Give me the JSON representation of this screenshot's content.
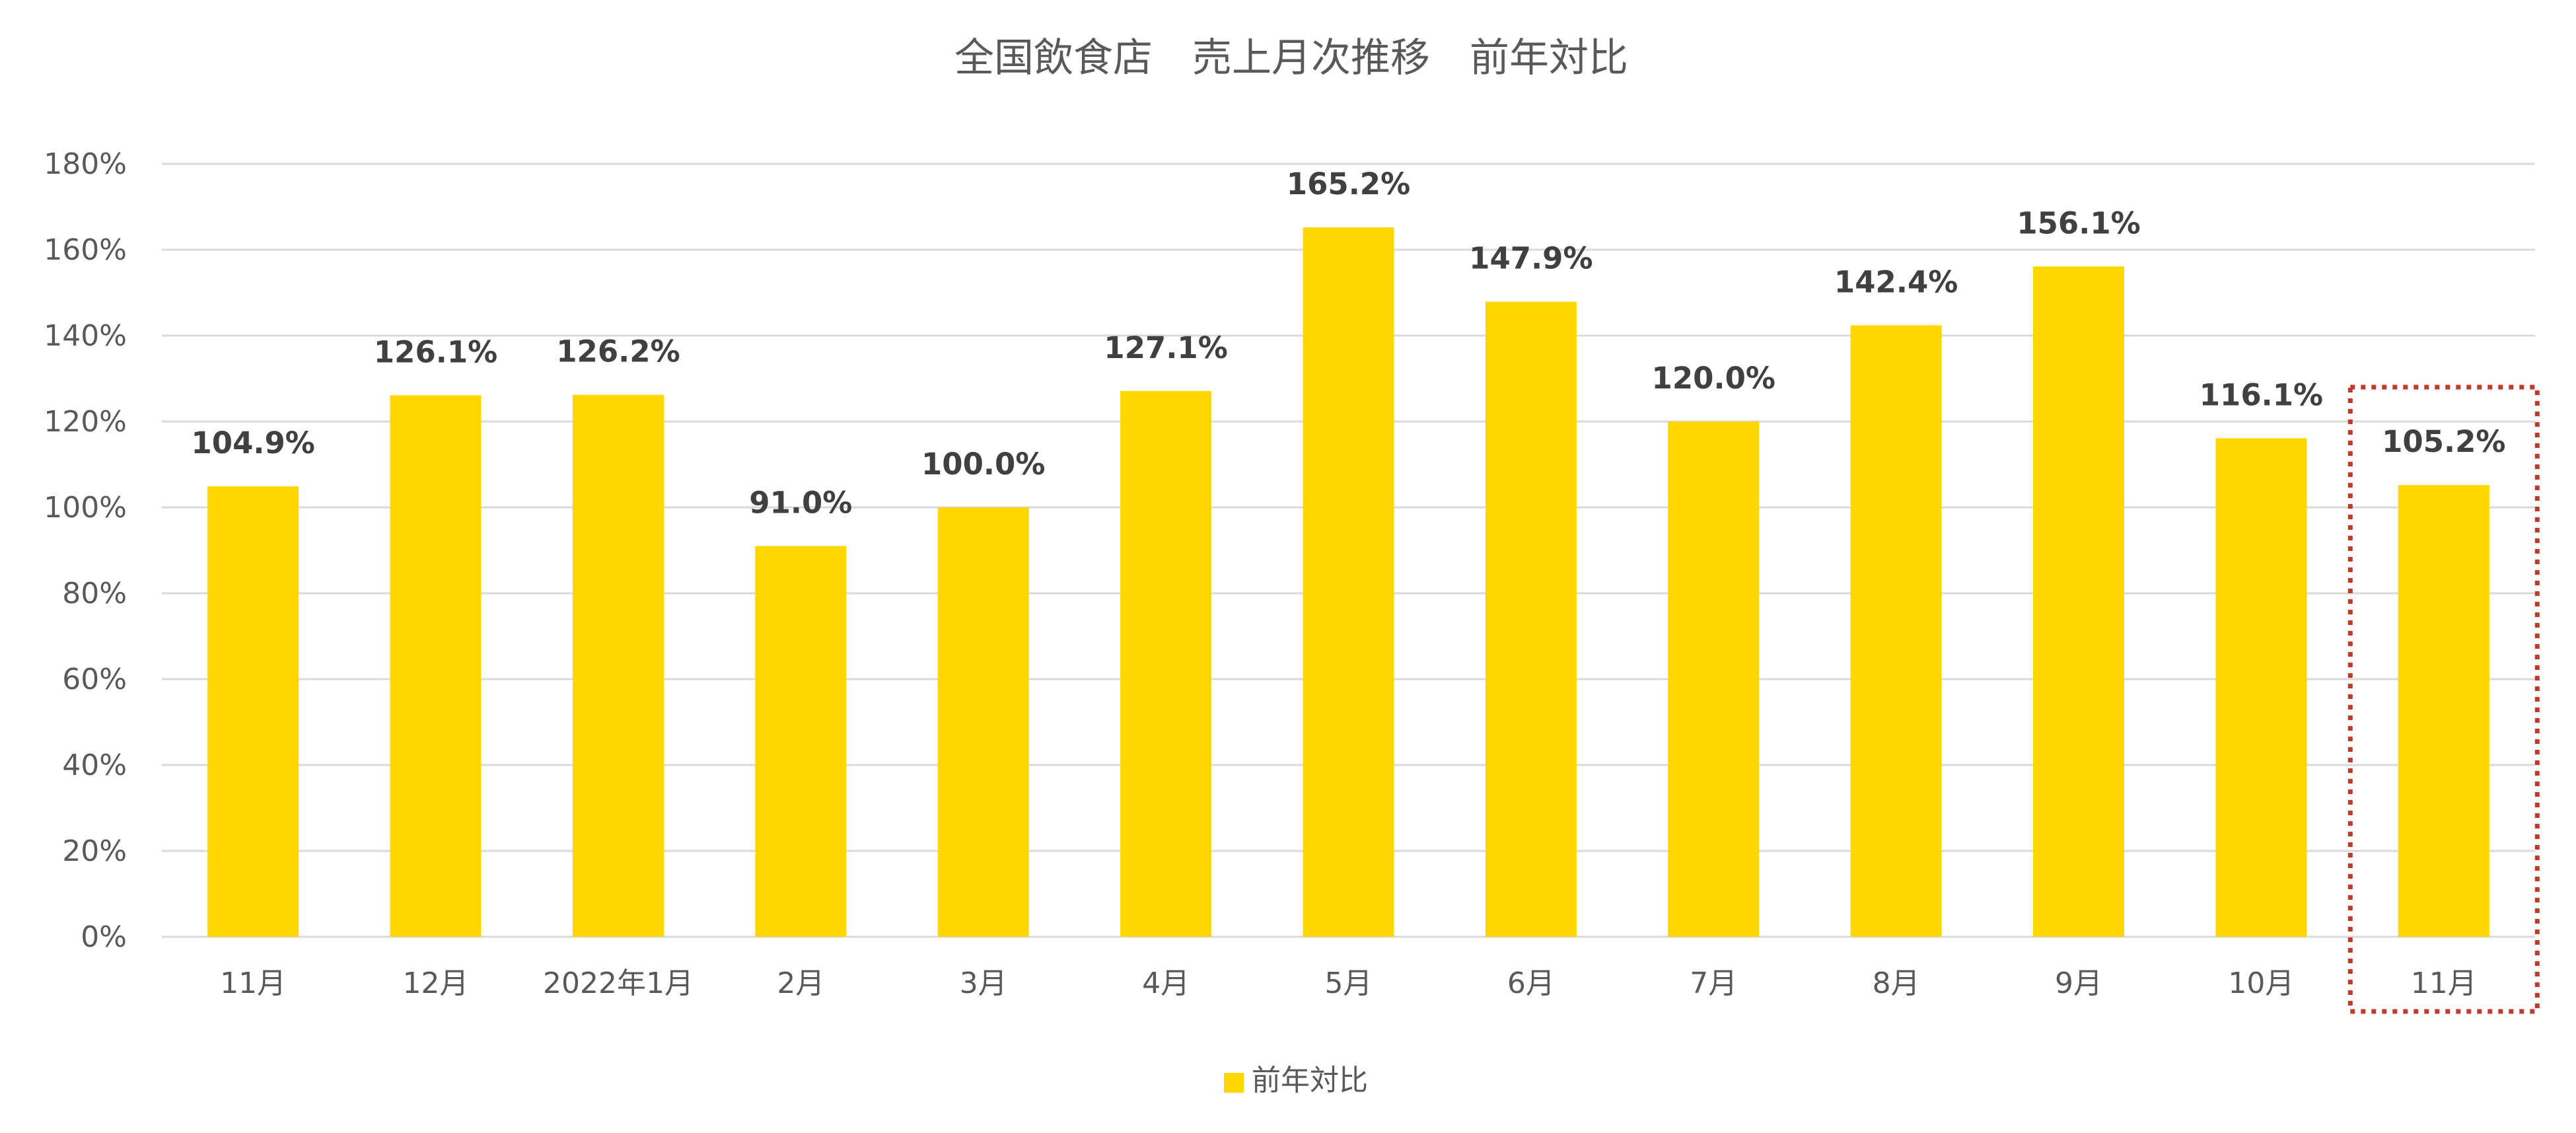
{
  "chart_data": {
    "type": "bar",
    "title": "全国飲食店　売上月次推移　前年対比",
    "categories": [
      "11月",
      "12月",
      "2022年1月",
      "2月",
      "3月",
      "4月",
      "5月",
      "6月",
      "7月",
      "8月",
      "9月",
      "10月",
      "11月"
    ],
    "series": [
      {
        "name": "前年対比",
        "values": [
          104.9,
          126.1,
          126.2,
          91.0,
          100.0,
          127.1,
          165.2,
          147.9,
          120.0,
          142.4,
          156.1,
          116.1,
          105.2
        ],
        "labels": [
          "104.9%",
          "126.1%",
          "126.2%",
          "91.0%",
          "100.0%",
          "127.1%",
          "165.2%",
          "147.9%",
          "120.0%",
          "142.4%",
          "156.1%",
          "116.1%",
          "105.2%"
        ],
        "color": "#ffd700"
      }
    ],
    "yticks": [
      "0%",
      "20%",
      "40%",
      "60%",
      "80%",
      "100%",
      "120%",
      "140%",
      "160%",
      "180%"
    ],
    "ylim": [
      0,
      180
    ],
    "grid": true,
    "legend": "bottom-center",
    "highlight": {
      "category_index": 12,
      "style": "dotted-box",
      "color": "#c0392b"
    }
  }
}
